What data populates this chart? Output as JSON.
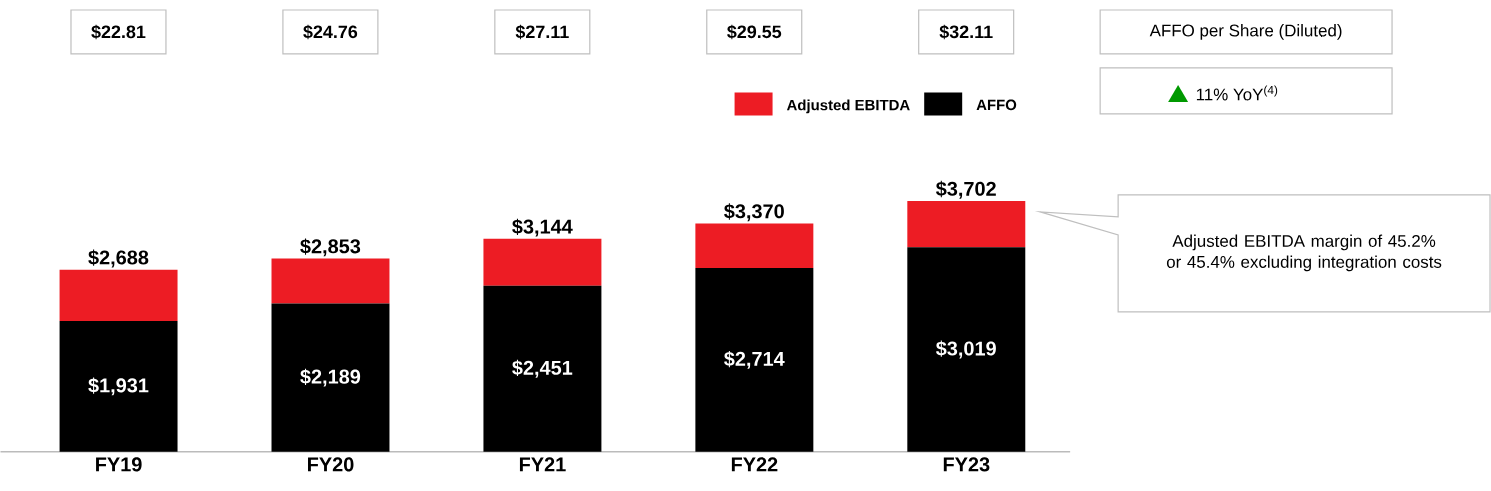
{
  "chart_data": {
    "type": "bar",
    "stacked": true,
    "legend": "top right",
    "categories": [
      "FY19",
      "FY20",
      "FY21",
      "FY22",
      "FY23"
    ],
    "series": [
      {
        "name": "AFFO",
        "color": "#000000",
        "values": [
          1931,
          2189,
          2451,
          2714,
          3019
        ],
        "value_labels": [
          "$1,931",
          "$2,189",
          "$2,451",
          "$2,714",
          "$3,019"
        ]
      },
      {
        "name": "Adjusted EBITDA",
        "color": "#ed1c24",
        "values": [
          757,
          664,
          693,
          656,
          683
        ]
      }
    ],
    "totals": [
      "$2,688",
      "$2,853",
      "$3,144",
      "$3,370",
      "$3,702"
    ],
    "annotations": [
      "$22.81",
      "$24.76",
      "$27.11",
      "$29.55",
      "$32.11",
      "AFFO per Share (Diluted)",
      "11% YoY$^{(4)}$",
      "Adjusted EBITDA margin of 45.2% or 45.4% excluding integration costs"
    ]
  }
}
